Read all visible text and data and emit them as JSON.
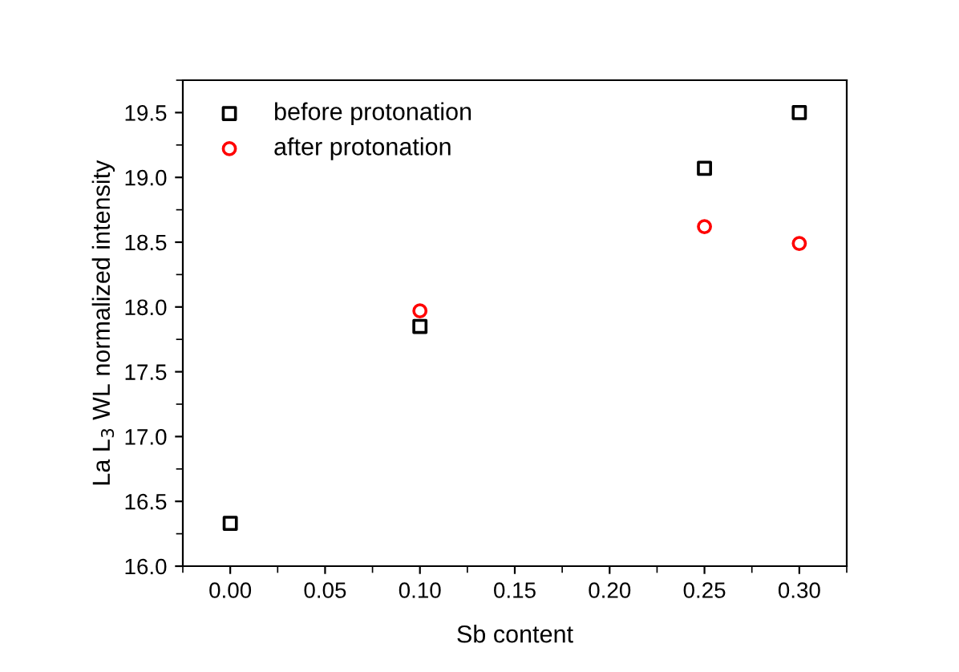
{
  "chart_data": {
    "type": "scatter",
    "xlabel": "Sb content",
    "ylabel": "La L$_{3}$ WL normalized intensity",
    "xlim": [
      -0.025,
      0.325
    ],
    "xticks": [
      {
        "value": 0,
        "label": "0.00"
      },
      0.05,
      {
        "value": 0.1,
        "label": "0.10"
      },
      0.15,
      {
        "value": 0.2,
        "label": "0.20"
      },
      0.25,
      {
        "value": 0.3,
        "label": "0.30"
      }
    ],
    "ylim": [
      16.0,
      19.75
    ],
    "yticks": [
      {
        "value": 16,
        "label": "16.0"
      },
      16.5,
      {
        "value": 17,
        "label": "17.0"
      },
      17.5,
      {
        "value": 18,
        "label": "18.0"
      },
      18.5,
      {
        "value": 19,
        "label": "19.0"
      },
      19.5
    ],
    "grid": false,
    "legend": "top left",
    "series": [
      {
        "name": "before protonation",
        "color": "#000000",
        "marker": "square",
        "x": [
          0,
          0.1,
          0.25,
          0.3
        ],
        "values": [
          16.33,
          17.85,
          19.07,
          19.5
        ]
      },
      {
        "name": "after protonation",
        "color": "#ff0000",
        "marker": "circle",
        "x": [
          0.1,
          0.25,
          0.3
        ],
        "values": [
          17.97,
          18.62,
          18.49
        ]
      }
    ]
  }
}
